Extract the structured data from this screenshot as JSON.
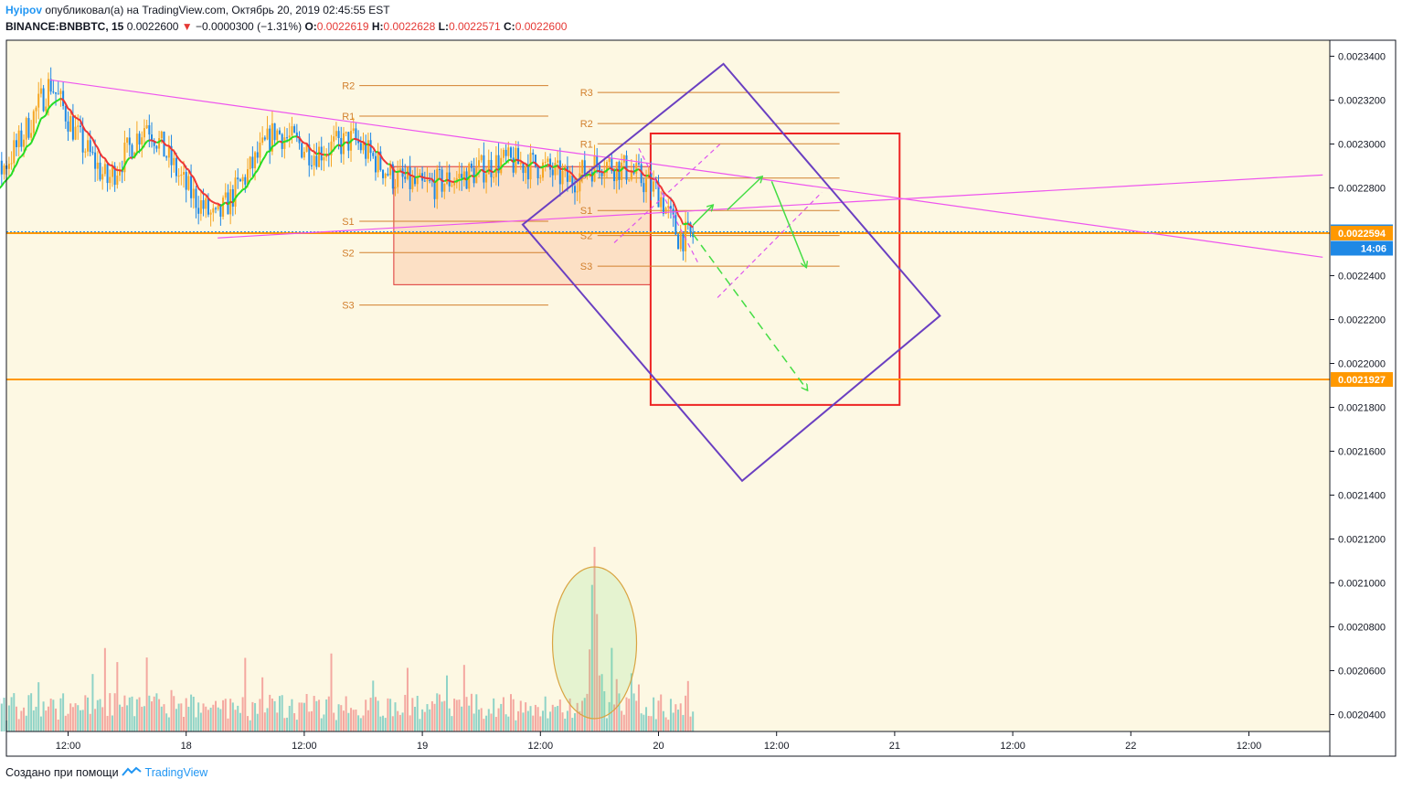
{
  "header": {
    "author": "Hyipov",
    "published": "опубликовал(а) на TradingView.com, Октябрь 20, 2019 02:45:55 EST",
    "symbol": "BINANCE:BNBBTC, 15",
    "last": "0.0022600",
    "change": "−0.0000300 (−1.31%)",
    "o_label": "O:",
    "o_value": "0.0022619",
    "h_label": "H:",
    "h_value": "0.0022628",
    "l_label": "L:",
    "l_value": "0.0022571",
    "c_label": "C:",
    "c_value": "0.0022600"
  },
  "footer": {
    "created": "Создано при помощи",
    "brand": "TradingView"
  },
  "colors": {
    "background": "#fdf8e3",
    "up": "#26a69a",
    "down": "#ef5350",
    "candle_up": "#f5a623",
    "candle_down": "#1e88e5",
    "ma_up": "#22dd22",
    "ma_down": "#ee3333",
    "trendline": "#ee55ee",
    "box": "#6a3fc1",
    "zone": "#ee2222",
    "level": "#d2802e",
    "price_tag": "#1e88e5",
    "support_tag": "#ff9800"
  },
  "chart_data": {
    "type": "candlestick",
    "symbol": "BINANCE:BNBBTC",
    "timeframe": "15",
    "price_axis": {
      "ticks": [
        "0.0023400",
        "0.0023200",
        "0.0023000",
        "0.0022800",
        "0.0022400",
        "0.0022200",
        "0.0022000",
        "0.0021800",
        "0.0021600",
        "0.0021400",
        "0.0021200",
        "0.0021000",
        "0.0020800",
        "0.0020600",
        "0.0020400"
      ],
      "tick_values": [
        0.00234,
        0.00232,
        0.0023,
        0.00228,
        0.00224,
        0.00222,
        0.0022,
        0.00218,
        0.00216,
        0.00214,
        0.00212,
        0.0021,
        0.00208,
        0.00206,
        0.00204
      ],
      "range": [
        0.002035,
        0.002345
      ]
    },
    "time_axis": {
      "labels": [
        "12:00",
        "18",
        "12:00",
        "19",
        "12:00",
        "20",
        "12:00",
        "21",
        "12:00",
        "22",
        "12:00"
      ],
      "label_hours": [
        12,
        24,
        36,
        48,
        60,
        72,
        84,
        96,
        108,
        120,
        132
      ],
      "range_hours": [
        1,
        139.5
      ]
    },
    "price_tags": [
      {
        "label": "0.0022600",
        "value": 0.00226,
        "kind": "last"
      },
      {
        "label": "14:06",
        "value": 0.002258,
        "kind": "countdown"
      },
      {
        "label": "0.0022594",
        "value": 0.0022594,
        "kind": "level"
      },
      {
        "label": "0.0021927",
        "value": 0.0021927,
        "kind": "level"
      }
    ],
    "horizontal_lines": [
      0.0022594,
      0.0021927
    ],
    "pivot_sets": [
      {
        "t0": 41.6,
        "t1": 60.8,
        "levels": [
          {
            "name": "R2",
            "value": 0.0023266
          },
          {
            "name": "R1",
            "value": 0.0023127
          },
          {
            "name": "S1",
            "value": 0.0022648
          },
          {
            "name": "S2",
            "value": 0.0022505
          },
          {
            "name": "S3",
            "value": 0.0022266
          }
        ]
      },
      {
        "t0": 65.8,
        "t1": 90.4,
        "levels": [
          {
            "name": "R3",
            "value": 0.0023235
          },
          {
            "name": "R2",
            "value": 0.0023093
          },
          {
            "name": "R1",
            "value": 0.0023001
          },
          {
            "name": "P",
            "value": 0.0022845
          },
          {
            "name": "S1",
            "value": 0.0022697
          },
          {
            "name": "S2",
            "value": 0.0022583
          },
          {
            "name": "S3",
            "value": 0.0022443
          }
        ]
      }
    ],
    "trendlines": [
      {
        "t0": 10.2,
        "v0": 0.0023292,
        "t1": 139.5,
        "v1": 0.0022484
      },
      {
        "t0": 27.2,
        "v0": 0.0022572,
        "t1": 139.5,
        "v1": 0.0022859
      }
    ],
    "zones": [
      {
        "t0": 45.1,
        "t1": 71.2,
        "top": 0.0022897,
        "bottom": 0.0022359,
        "kind": "range"
      },
      {
        "t0": 71.2,
        "t1": 96.5,
        "top": 0.0023048,
        "bottom": 0.0021811,
        "kind": "target"
      }
    ],
    "rotated_box": [
      {
        "t": 78.6,
        "v": 0.0023365
      },
      {
        "t": 100.6,
        "v": 0.0022217
      },
      {
        "t": 80.5,
        "v": 0.0021465
      },
      {
        "t": 58.2,
        "v": 0.0022633
      }
    ],
    "volume_highlight": {
      "t": 65.5
    }
  }
}
